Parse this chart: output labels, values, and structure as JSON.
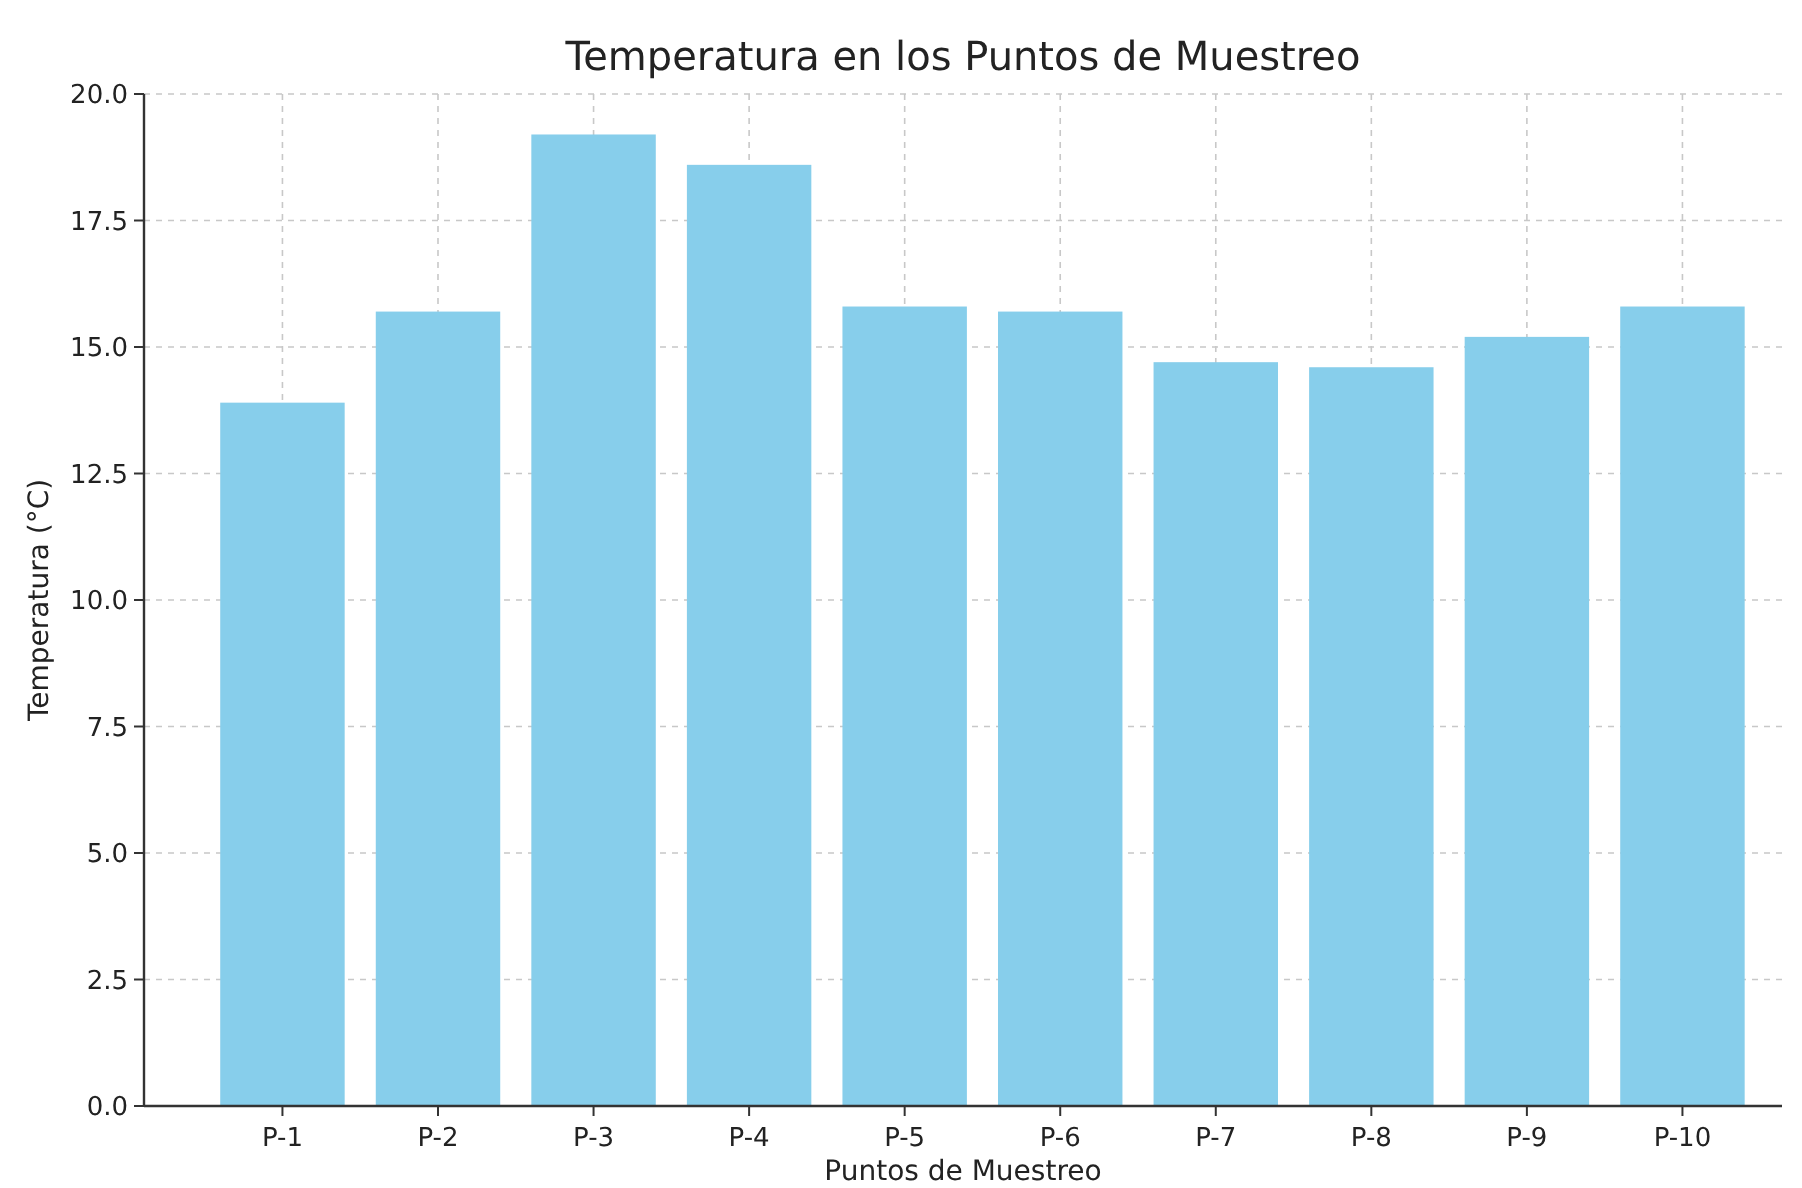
{
  "chart_data": {
    "type": "bar",
    "title": "Temperatura en los Puntos de Muestreo",
    "xlabel": "Puntos de Muestreo",
    "ylabel": "Temperatura (°C)",
    "categories": [
      "P-1",
      "P-2",
      "P-3",
      "P-4",
      "P-5",
      "P-6",
      "P-7",
      "P-8",
      "P-9",
      "P-10"
    ],
    "values": [
      13.9,
      15.7,
      19.2,
      18.6,
      15.8,
      15.7,
      14.7,
      14.6,
      15.2,
      15.8
    ],
    "color": "#87ceeb",
    "ylim": [
      0,
      20
    ],
    "yticks": [
      {
        "value": 0,
        "label": "0.0"
      },
      {
        "value": 2.5,
        "label": "2.5"
      },
      {
        "value": 5,
        "label": "5.0"
      },
      {
        "value": 7.5,
        "label": "7.5"
      },
      {
        "value": 10,
        "label": "10.0"
      },
      {
        "value": 12.5,
        "label": "12.5"
      },
      {
        "value": 15,
        "label": "15.0"
      },
      {
        "value": 17.5,
        "label": "17.5"
      },
      {
        "value": 20,
        "label": "20.0"
      }
    ],
    "grid": true
  }
}
